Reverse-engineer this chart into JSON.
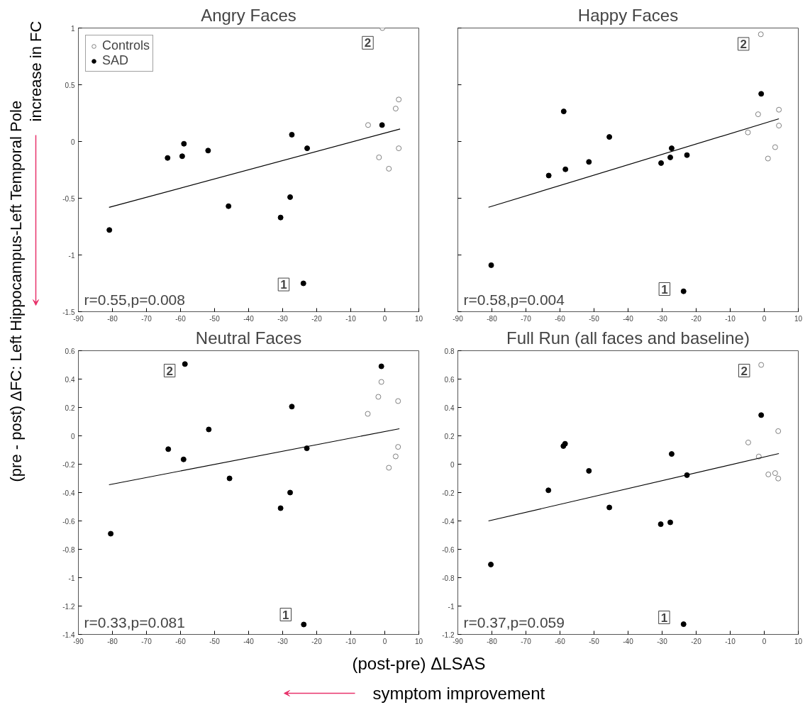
{
  "chart_data": [
    {
      "type": "scatter",
      "title": "Angry Faces",
      "ylabel": "(pre - post) ΔFC: Left Hippocampus-Left Temporal Pole\nincrease in FC",
      "xlim": [
        -90,
        10
      ],
      "xticks": [
        -90,
        -80,
        -70,
        -60,
        -50,
        -40,
        -30,
        -20,
        -10,
        0,
        10
      ],
      "ylim": [
        -1.5,
        1
      ],
      "yticks": [
        -1.5,
        -1,
        -0.5,
        0,
        0.5,
        1
      ],
      "grid": false,
      "legend": "top left",
      "marker": "circle",
      "annotations": [
        "r=0.55,p=0.008",
        {
          "text": "2",
          "x": -5.0,
          "y": 0.87
        },
        {
          "text": "1",
          "x": -29.7,
          "y": -1.26
        }
      ],
      "series": [
        {
          "name": "Controls",
          "color": "#808080",
          "x": [
            -0.7,
            -4.9,
            -1.7,
            1.2,
            3.2,
            4.1,
            4.1
          ],
          "values": [
            1.0,
            0.145,
            -0.14,
            -0.24,
            0.29,
            0.37,
            -0.06
          ]
        },
        {
          "name": "SAD",
          "color": "#000000",
          "x": [
            -80.9,
            -63.8,
            -59.5,
            -59.0,
            -51.9,
            -45.9,
            -30.6,
            -27.8,
            -27.3,
            -22.8,
            -23.9,
            -0.8
          ],
          "values": [
            -0.78,
            -0.145,
            -0.13,
            -0.02,
            -0.08,
            -0.57,
            -0.67,
            -0.49,
            0.06,
            -0.06,
            -1.25,
            0.145
          ]
        },
        {
          "type": "line",
          "color": "#000000",
          "x": [
            -81,
            4.5
          ],
          "values": [
            -0.58,
            0.11
          ],
          "marker": "none"
        }
      ]
    },
    {
      "type": "scatter",
      "title": "Happy Faces",
      "xlim": [
        -90,
        10
      ],
      "xticks": [
        -90,
        -80,
        -70,
        -60,
        -50,
        -40,
        -30,
        -20,
        -10,
        0,
        10
      ],
      "ylim": [
        -1.5,
        1
      ],
      "yticks": [
        -1.5,
        -1,
        -0.5,
        0,
        0.5,
        1
      ],
      "tick_labels": "x",
      "grid": false,
      "marker": "circle",
      "annotations": [
        "r=0.58,p=0.004",
        {
          "text": "2",
          "x": -6.1,
          "y": 0.86
        },
        {
          "text": "1",
          "x": -29.3,
          "y": -1.3
        }
      ],
      "series": [
        {
          "color": "#808080",
          "x": [
            -1.0,
            -1.8,
            -4.8,
            4.3,
            4.3,
            3.2,
            1.1
          ],
          "values": [
            0.945,
            0.24,
            0.08,
            0.28,
            0.14,
            -0.05,
            -0.15
          ]
        },
        {
          "color": "#000000",
          "x": [
            -80.2,
            -63.3,
            -58.4,
            -58.9,
            -51.5,
            -45.5,
            -30.3,
            -27.6,
            -27.2,
            -22.7,
            -23.7,
            -0.9
          ],
          "values": [
            -1.09,
            -0.3,
            -0.245,
            0.265,
            -0.18,
            0.04,
            -0.19,
            -0.14,
            -0.06,
            -0.12,
            -1.32,
            0.42
          ]
        },
        {
          "type": "line",
          "color": "#000000",
          "x": [
            -81,
            4.3
          ],
          "values": [
            -0.58,
            0.2
          ],
          "marker": "none"
        }
      ]
    },
    {
      "type": "scatter",
      "title": "Neutral Faces",
      "xlabel": "(post-pre) ΔLSAS\nsymptom improvement",
      "xlim": [
        -90,
        10
      ],
      "xticks": [
        -90,
        -80,
        -70,
        -60,
        -50,
        -40,
        -30,
        -20,
        -10,
        0,
        10
      ],
      "ylim": [
        -1.4,
        0.6
      ],
      "yticks": [
        -1.4,
        -1.2,
        -1,
        -0.8,
        -0.6,
        -0.4,
        -0.2,
        0,
        0.2,
        0.4,
        0.6
      ],
      "grid": false,
      "marker": "circle",
      "annotations": [
        "r=0.33,p=0.081",
        {
          "text": "2",
          "x": -63.2,
          "y": 0.46
        },
        {
          "text": "1",
          "x": -29.1,
          "y": -1.26
        }
      ],
      "series": [
        {
          "color": "#808080",
          "x": [
            -5.0,
            -1.9,
            -1.0,
            3.9,
            3.9,
            3.2,
            1.2
          ],
          "values": [
            0.155,
            0.275,
            0.38,
            0.245,
            -0.078,
            -0.145,
            -0.225
          ]
        },
        {
          "color": "#000000",
          "x": [
            -80.5,
            -63.6,
            -59.1,
            -58.7,
            -51.7,
            -45.6,
            -30.6,
            -27.8,
            -27.3,
            -22.9,
            -23.8,
            -1.0
          ],
          "values": [
            -0.69,
            -0.094,
            -0.166,
            0.506,
            0.045,
            -0.3,
            -0.51,
            -0.4,
            0.206,
            -0.088,
            -1.33,
            0.49
          ]
        },
        {
          "type": "line",
          "color": "#000000",
          "x": [
            -81,
            4.3
          ],
          "values": [
            -0.345,
            0.05
          ],
          "marker": "none"
        }
      ]
    },
    {
      "type": "scatter",
      "title": "Full Run (all faces and baseline)",
      "xlim": [
        -90,
        10
      ],
      "xticks": [
        -90,
        -80,
        -70,
        -60,
        -50,
        -40,
        -30,
        -20,
        -10,
        0,
        10
      ],
      "ylim": [
        -1.2,
        0.8
      ],
      "yticks": [
        -1.2,
        -1,
        -0.8,
        -0.6,
        -0.4,
        -0.2,
        0,
        0.2,
        0.4,
        0.6,
        0.8
      ],
      "grid": false,
      "marker": "circle",
      "annotations": [
        "r=0.37,p=0.059",
        {
          "text": "2",
          "x": -5.9,
          "y": 0.66
        },
        {
          "text": "1",
          "x": -29.4,
          "y": -1.08
        }
      ],
      "series": [
        {
          "color": "#808080",
          "x": [
            -0.9,
            -4.7,
            -1.6,
            4.1,
            1.2,
            3.2,
            4.1
          ],
          "values": [
            0.7,
            0.153,
            0.054,
            0.233,
            -0.072,
            -0.063,
            -0.101
          ]
        },
        {
          "color": "#000000",
          "x": [
            -80.3,
            -63.4,
            -59.0,
            -58.5,
            -51.5,
            -45.5,
            -30.4,
            -27.6,
            -27.2,
            -22.7,
            -23.7,
            -0.9
          ],
          "values": [
            -0.707,
            -0.184,
            0.128,
            0.144,
            -0.047,
            -0.305,
            -0.423,
            -0.41,
            0.072,
            -0.077,
            -1.128,
            0.346
          ]
        },
        {
          "type": "line",
          "color": "#000000",
          "x": [
            -81,
            4.3
          ],
          "values": [
            -0.4,
            0.075
          ],
          "marker": "none"
        }
      ]
    }
  ]
}
